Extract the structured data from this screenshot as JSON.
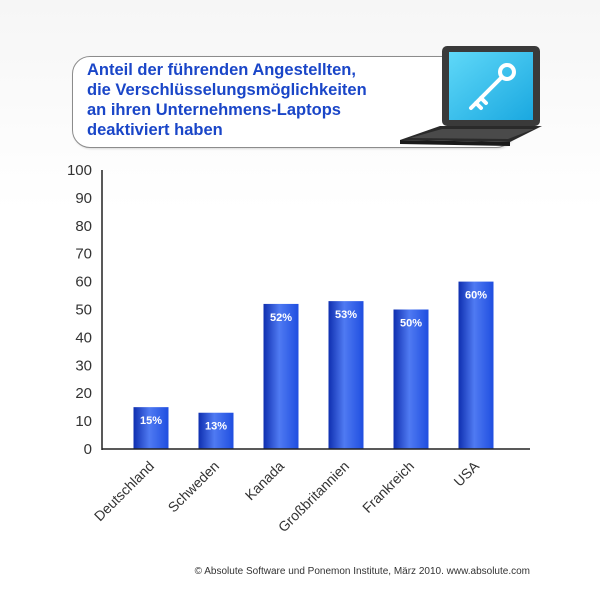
{
  "title": "Anteil der führenden Angestellten,\ndie Verschlüsselungsmöglichkeiten\nan ihren Unternehmens-Laptops\ndeaktiviert haben",
  "icon": "laptop-key-icon",
  "colors": {
    "bar": "#1f4ee0",
    "bar_light": "#4f7af2",
    "bar_dark": "#0f2fb0",
    "axis": "#222222",
    "title": "#1a46c8",
    "screen": "#1ec0f0"
  },
  "footer": "© Absolute Software und Ponemon Institute, März 2010. www.absolute.com",
  "chart_data": {
    "type": "bar",
    "title": "Anteil der führenden Angestellten, die Verschlüsselungsmöglichkeiten an ihren Unternehmens-Laptops deaktiviert haben",
    "categories": [
      "Deutschland",
      "Schweden",
      "Kanada",
      "Großbritannien",
      "Frankreich",
      "USA"
    ],
    "values": [
      15,
      13,
      52,
      53,
      50,
      60
    ],
    "data_labels": [
      "15%",
      "13%",
      "52%",
      "53%",
      "50%",
      "60%"
    ],
    "yticks": [
      0,
      10,
      20,
      30,
      40,
      50,
      60,
      70,
      80,
      90,
      100
    ],
    "ylim": [
      0,
      100
    ],
    "xlabel": "",
    "ylabel": "",
    "grid": false,
    "legend": "none"
  }
}
